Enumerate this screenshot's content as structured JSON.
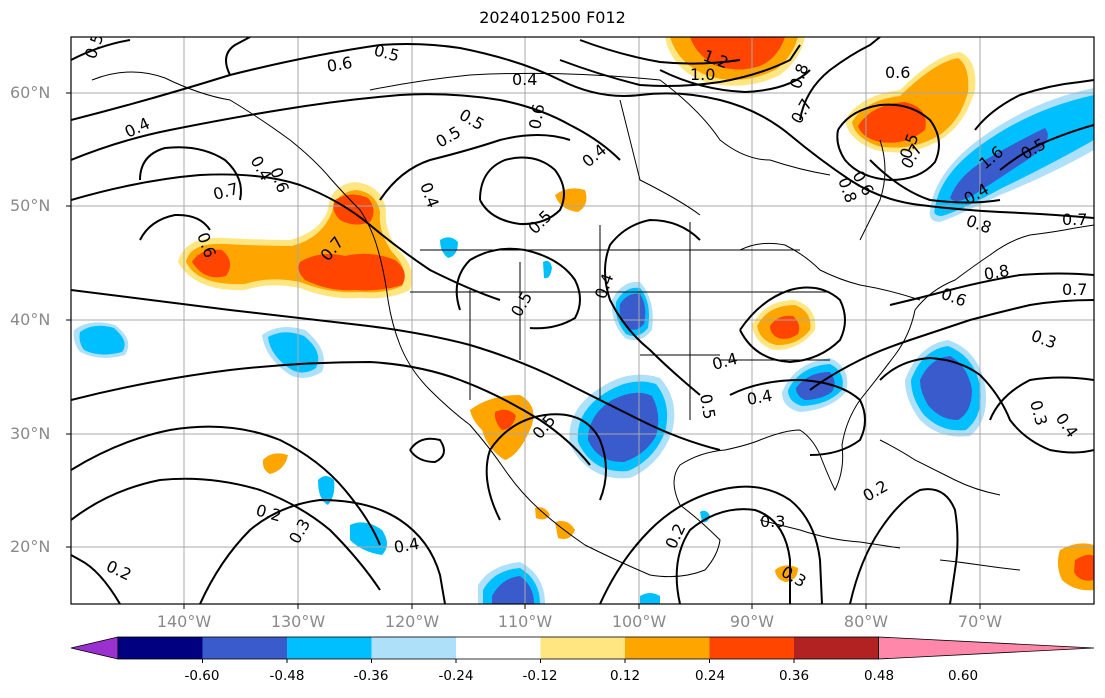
{
  "title": "2024012500 F012",
  "lat_labels": [
    "60°N",
    "50°N",
    "40°N",
    "30°N",
    "20°N"
  ],
  "lon_labels": [
    "140°W",
    "130°W",
    "120°W",
    "110°W",
    "100°W",
    "90°W",
    "80°W",
    "70°W"
  ],
  "colorbar": {
    "ticks": [
      "-0.60",
      "-0.48",
      "-0.36",
      "-0.24",
      "-0.12",
      "0.12",
      "0.24",
      "0.36",
      "0.48",
      "0.60"
    ],
    "colors": [
      "#9b30d0",
      "#000080",
      "#3a5bcc",
      "#00bfff",
      "#aee0fa",
      "#ffffff",
      "#ffe680",
      "#ffa500",
      "#ff4500",
      "#b22222",
      "#ff88aa"
    ]
  },
  "contour_labels": [
    "0.5",
    "0.5",
    "0.6",
    "0.4",
    "0.4",
    "0.6",
    "0.6",
    "0.5",
    "0.5",
    "0.7",
    "0.6",
    "0.4",
    "0.4",
    "0.5",
    "0.7",
    "0.4",
    "0.5",
    "0.4",
    "0.4",
    "0.5",
    "0.4",
    "0.7",
    "0.8",
    "0.6",
    "0.7",
    "0.7",
    "0.8",
    "0.7",
    "0.3",
    "0.3",
    "0.4",
    "0.2",
    "0.3",
    "0.4",
    "0.2",
    "0.2",
    "0.3",
    "0.3",
    "0.2",
    "1.0",
    "1.2",
    "1.6",
    "0.6",
    "0.8",
    "0.4",
    "0.5",
    "0.8",
    "0.5",
    "0.5",
    "0.6"
  ]
}
